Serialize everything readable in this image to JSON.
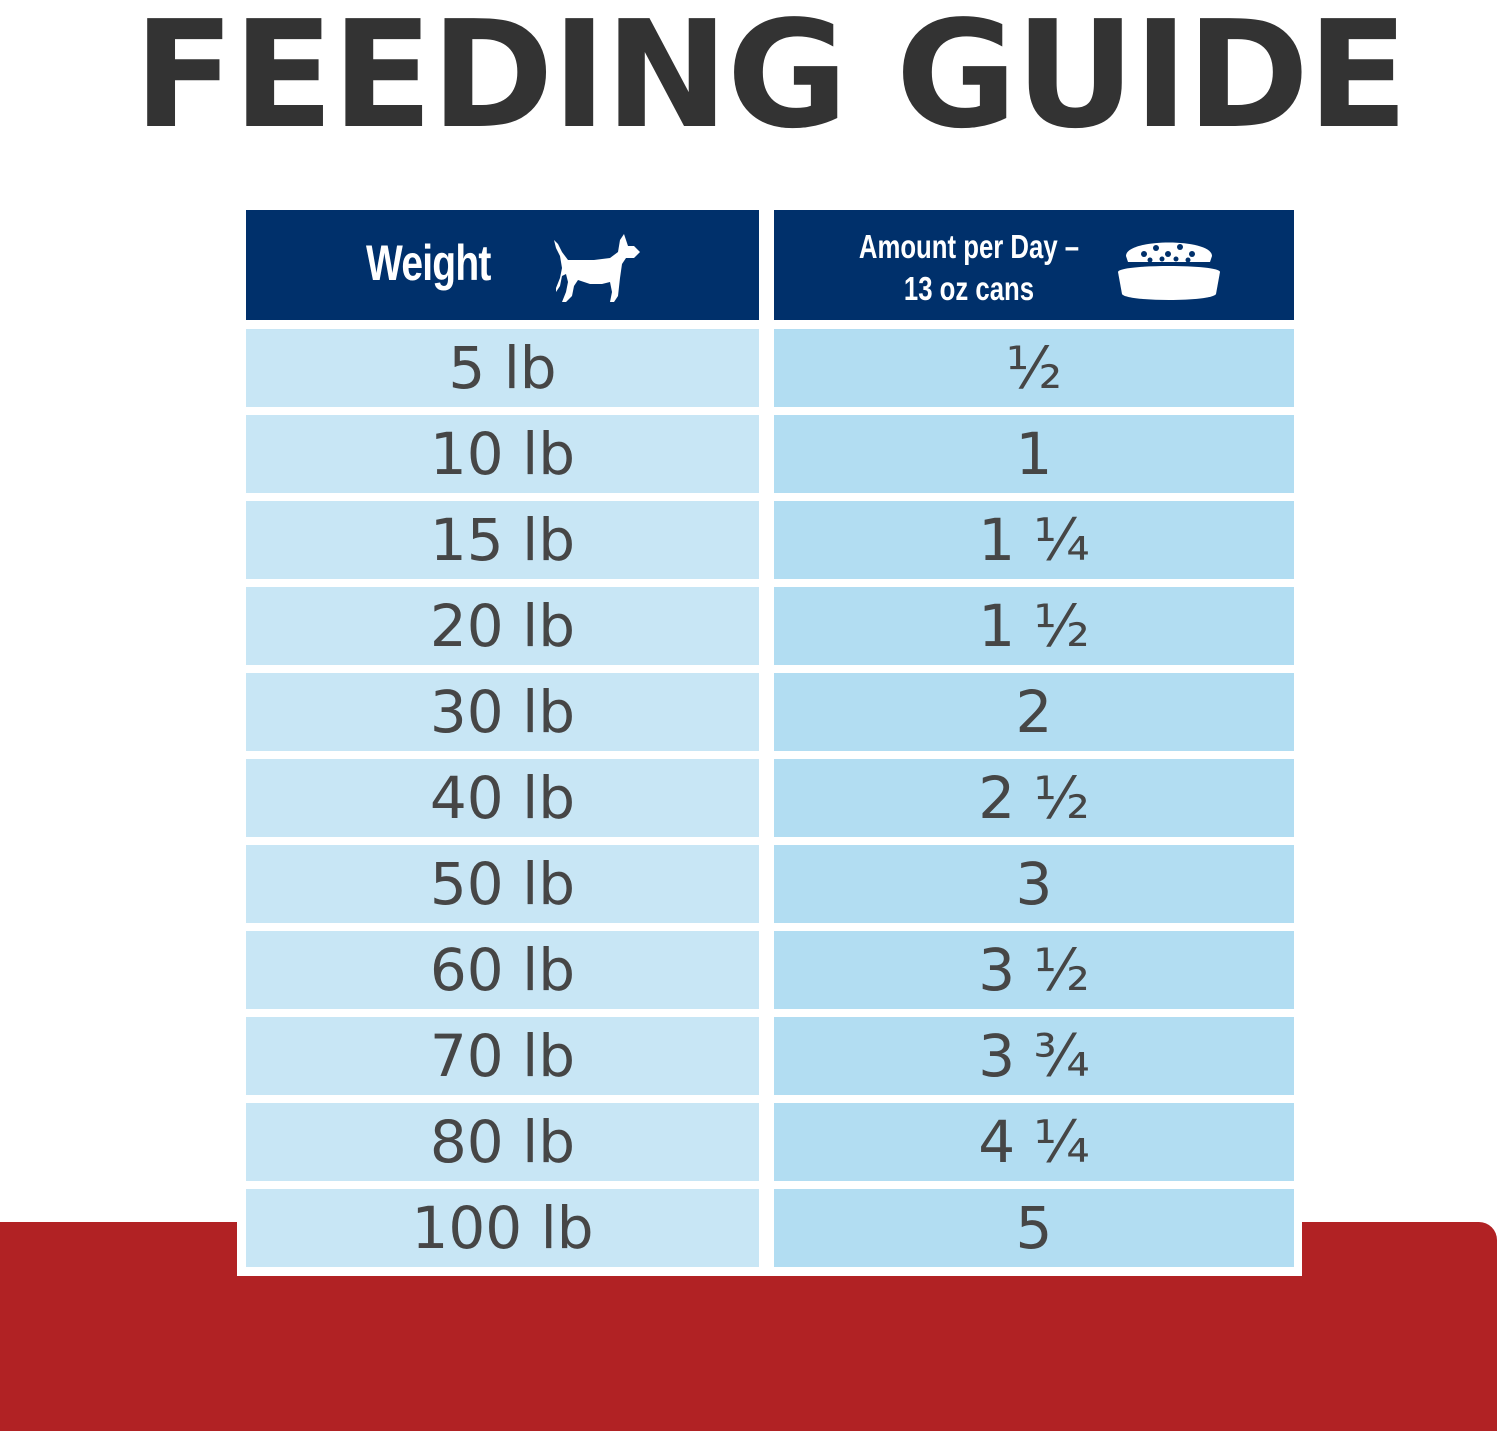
{
  "title": "FEEDING GUIDE",
  "table": {
    "weight_header": "Weight",
    "amount_header_line1": "Amount per Day –",
    "amount_header_line2": "13 oz cans",
    "header_icons": [
      "dog-icon",
      "food-bowl-icon"
    ],
    "rows": [
      {
        "weight": "5 lb",
        "amount": "½"
      },
      {
        "weight": "10 lb",
        "amount": "1"
      },
      {
        "weight": "15 lb",
        "amount": "1 ¼"
      },
      {
        "weight": "20 lb",
        "amount": "1 ½"
      },
      {
        "weight": "30 lb",
        "amount": "2"
      },
      {
        "weight": "40 lb",
        "amount": "2 ½"
      },
      {
        "weight": "50 lb",
        "amount": "3"
      },
      {
        "weight": "60 lb",
        "amount": "3 ½"
      },
      {
        "weight": "70 lb",
        "amount": "3 ¾"
      },
      {
        "weight": "80 lb",
        "amount": "4 ¼"
      },
      {
        "weight": "100 lb",
        "amount": "5"
      }
    ]
  },
  "colors": {
    "header_bg": "#00306b",
    "weight_cell_bg": "#c8e6f5",
    "amount_cell_bg": "#b2ddf2",
    "title_text": "#333333",
    "cell_text": "#464646",
    "band": "#b12224"
  }
}
